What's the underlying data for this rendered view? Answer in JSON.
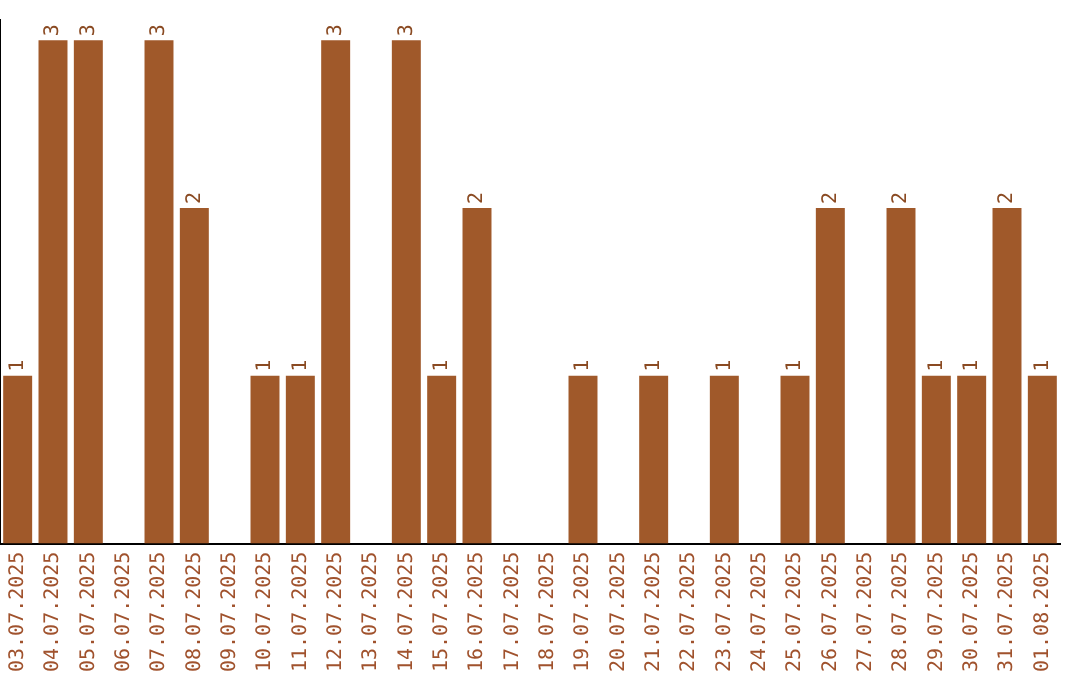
{
  "chart_data": {
    "type": "bar",
    "categories": [
      "03.07.2025",
      "04.07.2025",
      "05.07.2025",
      "06.07.2025",
      "07.07.2025",
      "08.07.2025",
      "09.07.2025",
      "10.07.2025",
      "11.07.2025",
      "12.07.2025",
      "13.07.2025",
      "14.07.2025",
      "15.07.2025",
      "16.07.2025",
      "17.07.2025",
      "18.07.2025",
      "19.07.2025",
      "20.07.2025",
      "21.07.2025",
      "22.07.2025",
      "23.07.2025",
      "24.07.2025",
      "25.07.2025",
      "26.07.2025",
      "27.07.2025",
      "28.07.2025",
      "29.07.2025",
      "30.07.2025",
      "31.07.2025",
      "01.08.2025"
    ],
    "values": [
      1,
      3,
      3,
      0,
      3,
      2,
      0,
      1,
      1,
      3,
      0,
      3,
      1,
      2,
      0,
      0,
      1,
      0,
      1,
      0,
      1,
      0,
      1,
      2,
      0,
      2,
      1,
      1,
      2,
      1
    ],
    "value_labels": [
      "1",
      "3",
      "3",
      null,
      "3",
      "2",
      null,
      "1",
      "1",
      "3",
      null,
      "3",
      "1",
      "2",
      null,
      null,
      "1",
      null,
      "1",
      null,
      "1",
      null,
      "1",
      "2",
      null,
      "2",
      "1",
      "1",
      "2",
      "1"
    ],
    "color": "#a0592a",
    "ylim": [
      0,
      3.12
    ],
    "tick_labels": "x",
    "grid": false,
    "legend": false
  }
}
